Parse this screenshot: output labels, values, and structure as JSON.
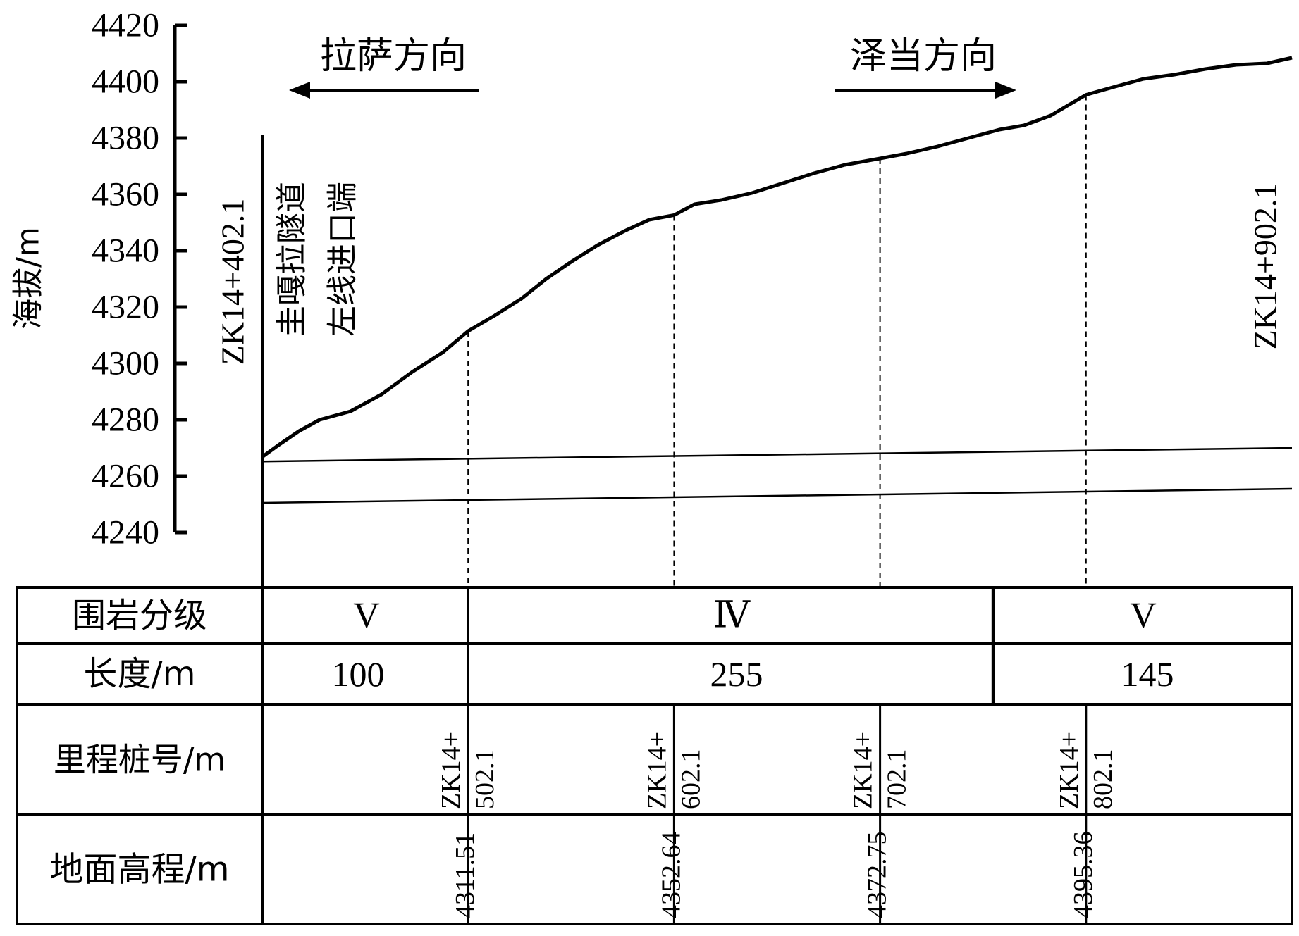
{
  "chart_data": {
    "type": "line",
    "ylabel": "海拔/m",
    "ylim": [
      4240,
      4420
    ],
    "yticks": [
      4240,
      4260,
      4280,
      4300,
      4320,
      4340,
      4360,
      4380,
      4400,
      4420
    ],
    "xlim": [
      402.1,
      902.1
    ],
    "series": [
      {
        "x": [
          402.1,
          410,
          420,
          430,
          445,
          460,
          475,
          490,
          502.1,
          515,
          528,
          540,
          552,
          565,
          578,
          590,
          602.1,
          612,
          625,
          640,
          655,
          670,
          685,
          702.1,
          715,
          730,
          745,
          760,
          772,
          785,
          802.1,
          815,
          830,
          845,
          860,
          875,
          890,
          902.1
        ],
        "y": [
          4266.8,
          4271,
          4276,
          4280,
          4283,
          4289,
          4297,
          4304,
          4311.51,
          4317,
          4323,
          4330,
          4336,
          4342,
          4347,
          4351,
          4352.64,
          4356.5,
          4358,
          4360.5,
          4364,
          4367.5,
          4370.5,
          4372.75,
          4374.5,
          4377,
          4380,
          4383,
          4384.5,
          4388,
          4395.36,
          4398,
          4401,
          4402.5,
          4404.5,
          4406,
          4406.5,
          4408.5
        ]
      }
    ],
    "tunnel_lines": [
      {
        "x": [
          402.1,
          902.1
        ],
        "y": [
          4265.2,
          4270
        ]
      },
      {
        "x": [
          402.1,
          902.1
        ],
        "y": [
          4250.5,
          4255.5
        ]
      }
    ],
    "guide_stations": [
      502.1,
      602.1,
      702.1,
      802.1
    ],
    "annotations": {
      "left_direction": "拉萨方向",
      "right_direction": "泽当方向",
      "tunnel_name_line1": "圭嘎拉隧道",
      "tunnel_name_line2": "左线进口端",
      "start_station": "ZK14+402.1",
      "end_station": "ZK14+902.1"
    }
  },
  "table": {
    "row_labels": [
      "围岩分级",
      "长度/m",
      "里程桩号/m",
      "地面高程/m"
    ],
    "grades": [
      {
        "label": "V",
        "from": 402.1,
        "to": 502.1
      },
      {
        "label": "Ⅳ",
        "from": 502.1,
        "to": 757.1
      },
      {
        "label": "V",
        "from": 757.1,
        "to": 902.1
      }
    ],
    "lengths": [
      "100",
      "255",
      "145"
    ],
    "stations": [
      {
        "x": 502.1,
        "prefix": "ZK14+",
        "suffix": "502.1",
        "elevation": "4311.51"
      },
      {
        "x": 602.1,
        "prefix": "ZK14+",
        "suffix": "602.1",
        "elevation": "4352.64"
      },
      {
        "x": 702.1,
        "prefix": "ZK14+",
        "suffix": "702.1",
        "elevation": "4372.75"
      },
      {
        "x": 802.1,
        "prefix": "ZK14+",
        "suffix": "802.1",
        "elevation": "4395.36"
      }
    ]
  }
}
